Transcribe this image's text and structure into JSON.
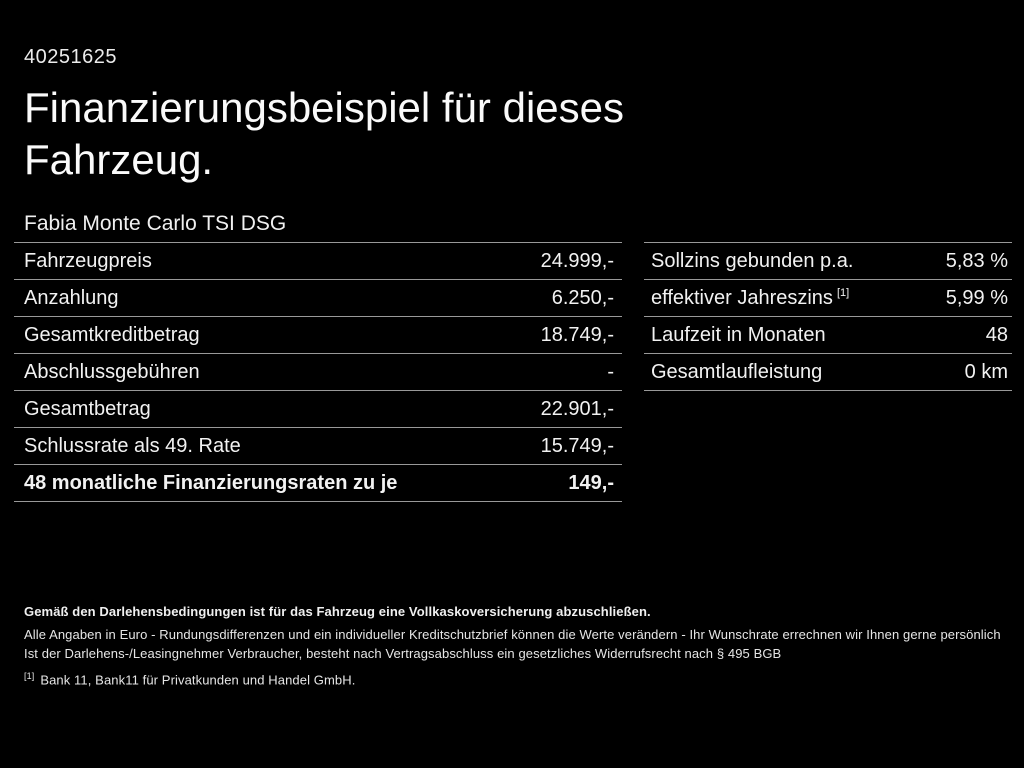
{
  "page": {
    "background": "#000000",
    "text_color": "#f5f5f5",
    "divider_color": "#999999"
  },
  "header": {
    "vehicle_id": "40251625",
    "title": "Finanzierungsbeispiel für dieses Fahrzeug.",
    "subtitle": "Fabia Monte Carlo TSI DSG"
  },
  "left_table": {
    "rows": [
      {
        "label": "Fahrzeugpreis",
        "value": "24.999,-"
      },
      {
        "label": "Anzahlung",
        "value": "6.250,-"
      },
      {
        "label": "Gesamtkreditbetrag",
        "value": "18.749,-"
      },
      {
        "label": "Abschlussgebühren",
        "value": "-"
      },
      {
        "label": "Gesamtbetrag",
        "value": "22.901,-"
      },
      {
        "label": "Schlussrate als 49. Rate",
        "value": "15.749,-"
      },
      {
        "label": "48 monatliche Finanzierungsraten zu je",
        "value": "149,-"
      }
    ]
  },
  "right_table": {
    "rows": [
      {
        "label": "Sollzins gebunden p.a.",
        "value": "5,83 %"
      },
      {
        "label": "effektiver Jahreszins",
        "sup": "[1]",
        "value": "5,99 %"
      },
      {
        "label": "Laufzeit in Monaten",
        "value": "48"
      },
      {
        "label": "Gesamtlaufleistung",
        "value": "0 km"
      }
    ]
  },
  "footer": {
    "bold_note": "Gemäß den Darlehensbedingungen ist für das Fahrzeug eine Vollkaskoversicherung abzuschließen.",
    "note_line2": "Alle Angaben in Euro - Rundungsdifferenzen und ein individueller Kreditschutzbrief können die Werte verändern - Ihr Wunschrate errechnen wir Ihnen gerne persönlich",
    "note_line3": "Ist der Darlehens-/Leasingnehmer Verbraucher, besteht nach Vertragsabschluss ein gesetzliches Widerrufsrecht nach § 495 BGB",
    "footnote_marker": "[1]",
    "footnote_text": "Bank 11, Bank11 für Privatkunden und Handel GmbH."
  }
}
